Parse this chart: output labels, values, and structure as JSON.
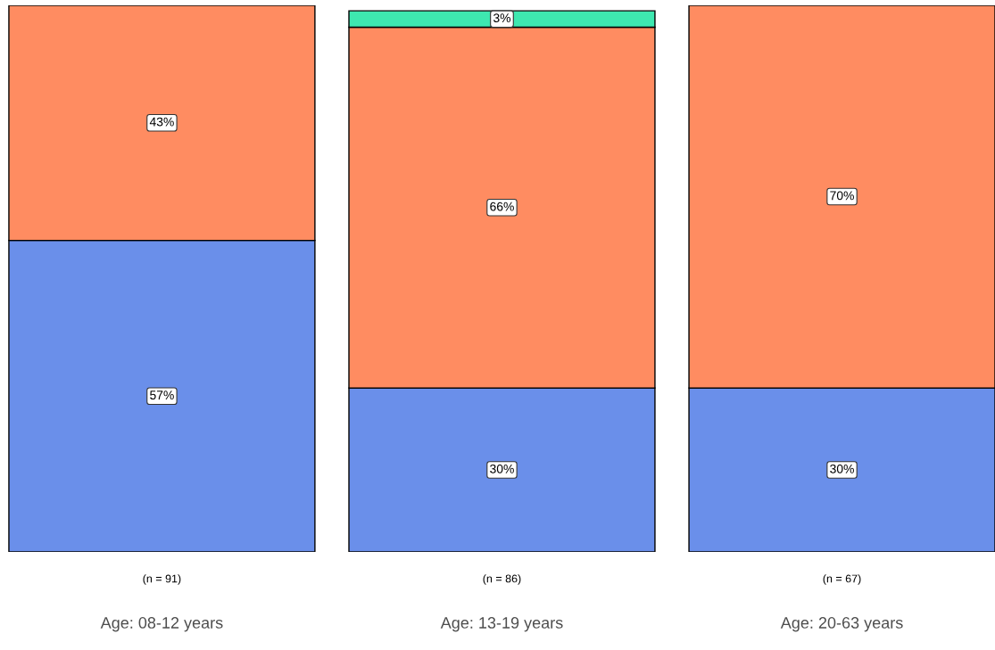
{
  "chart_data": {
    "type": "bar",
    "stacked": true,
    "categories": [
      "Age: 08-12 years",
      "Age: 13-19 years",
      "Age: 20-63 years"
    ],
    "series": [
      {
        "color": "#6a8fea",
        "values": [
          57,
          30,
          30
        ],
        "value_labels": [
          "57%",
          "30%",
          "30%"
        ]
      },
      {
        "color": "#ff8c61",
        "values": [
          43,
          66,
          70
        ],
        "value_labels": [
          "43%",
          "66%",
          "70%"
        ]
      },
      {
        "color": "#3ee8b0",
        "values": [
          null,
          3,
          null
        ],
        "value_labels": [
          null,
          "3%",
          null
        ]
      }
    ],
    "tick_labels": "x",
    "annotations": [
      "(n = 91)",
      "(n = 86)",
      "(n = 67)"
    ]
  }
}
